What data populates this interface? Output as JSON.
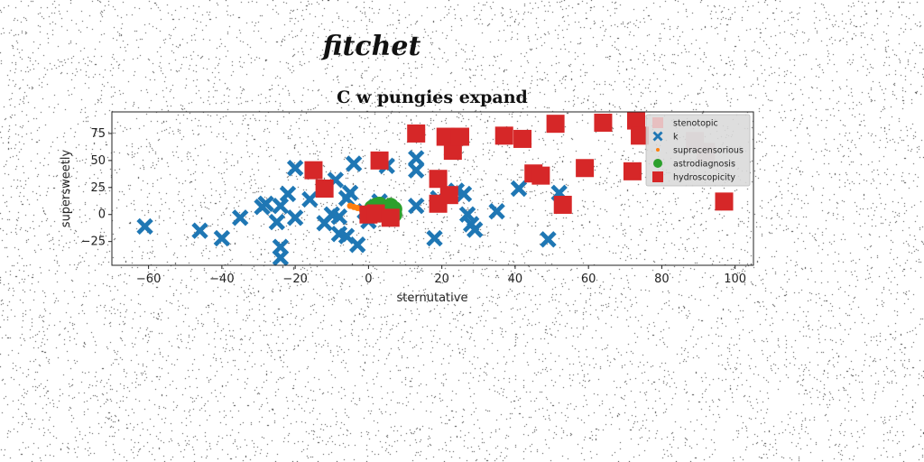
{
  "overlay_text": "fitchet",
  "chart_data": {
    "type": "scatter",
    "title": "C w pungies expand",
    "xlabel": "sternutative",
    "ylabel": "supersweetly",
    "xlim": [
      -70,
      105
    ],
    "ylim": [
      -47,
      95
    ],
    "xticks": [
      -60,
      -40,
      -20,
      0,
      20,
      40,
      60,
      80,
      100
    ],
    "yticks": [
      -25,
      0,
      25,
      50,
      75
    ],
    "grid": false,
    "legend_placement": "top-right",
    "series": [
      {
        "name": "stenotopic",
        "marker": "square",
        "color": "#e7bfc0",
        "points": [
          [
            89,
            68
          ],
          [
            92,
            58
          ]
        ]
      },
      {
        "name": "k",
        "marker": "x",
        "color": "#1f77b4",
        "points": [
          [
            -61,
            -11
          ],
          [
            -46,
            -15
          ],
          [
            -40,
            -22
          ],
          [
            -35,
            -3
          ],
          [
            -29,
            7
          ],
          [
            -28,
            10
          ],
          [
            -25,
            -7
          ],
          [
            -24,
            -30
          ],
          [
            -24,
            -40
          ],
          [
            -24,
            8
          ],
          [
            -22,
            19
          ],
          [
            -20,
            43
          ],
          [
            -20,
            -3
          ],
          [
            -16,
            14
          ],
          [
            -12,
            -8
          ],
          [
            -10,
            0
          ],
          [
            -9,
            32
          ],
          [
            -8,
            -2
          ],
          [
            -8,
            -18
          ],
          [
            -6,
            -20
          ],
          [
            -6,
            15
          ],
          [
            -5,
            20
          ],
          [
            -4,
            47
          ],
          [
            -3,
            -28
          ],
          [
            -1,
            3
          ],
          [
            0,
            -6
          ],
          [
            2,
            7
          ],
          [
            3,
            12
          ],
          [
            5,
            45
          ],
          [
            13,
            52
          ],
          [
            13,
            8
          ],
          [
            13,
            41
          ],
          [
            18,
            -22
          ],
          [
            19,
            15
          ],
          [
            24,
            22
          ],
          [
            26,
            19
          ],
          [
            27,
            0
          ],
          [
            28,
            -9
          ],
          [
            29,
            -14
          ],
          [
            35,
            3
          ],
          [
            41,
            24
          ],
          [
            49,
            -23
          ],
          [
            52,
            20
          ]
        ]
      },
      {
        "name": "supracensorious",
        "marker": "dot",
        "color": "#ff7f0e",
        "points": [
          [
            -5,
            8
          ],
          [
            -4,
            7
          ],
          [
            -3,
            6
          ],
          [
            -2,
            5
          ],
          [
            -1,
            4
          ],
          [
            0,
            3
          ],
          [
            1,
            2
          ],
          [
            2,
            1
          ],
          [
            3,
            1
          ],
          [
            4,
            0
          ]
        ]
      },
      {
        "name": "astrodiagnosis",
        "marker": "circle",
        "color": "#2ca02c",
        "points": [
          [
            1,
            6
          ],
          [
            2,
            3
          ],
          [
            3,
            0
          ],
          [
            4,
            7
          ],
          [
            5,
            4
          ],
          [
            6,
            2
          ],
          [
            6,
            8
          ],
          [
            7,
            5
          ],
          [
            7,
            0
          ],
          [
            3,
            9
          ],
          [
            5,
            -1
          ],
          [
            4,
            3
          ],
          [
            6,
            6
          ],
          [
            2,
            8
          ]
        ]
      },
      {
        "name": "hydroscopicity",
        "marker": "square",
        "color": "#d62728",
        "points": [
          [
            -15,
            41
          ],
          [
            -12,
            24
          ],
          [
            3,
            50
          ],
          [
            0,
            0
          ],
          [
            2,
            1
          ],
          [
            6,
            -3
          ],
          [
            13,
            75
          ],
          [
            19,
            33
          ],
          [
            19,
            10
          ],
          [
            21,
            72
          ],
          [
            22,
            18
          ],
          [
            23,
            59
          ],
          [
            25,
            72
          ],
          [
            37,
            73
          ],
          [
            42,
            70
          ],
          [
            45,
            38
          ],
          [
            47,
            36
          ],
          [
            51,
            84
          ],
          [
            53,
            9
          ],
          [
            59,
            43
          ],
          [
            64,
            85
          ],
          [
            72,
            40
          ],
          [
            73,
            87
          ],
          [
            74,
            73
          ],
          [
            97,
            12
          ]
        ]
      }
    ]
  }
}
